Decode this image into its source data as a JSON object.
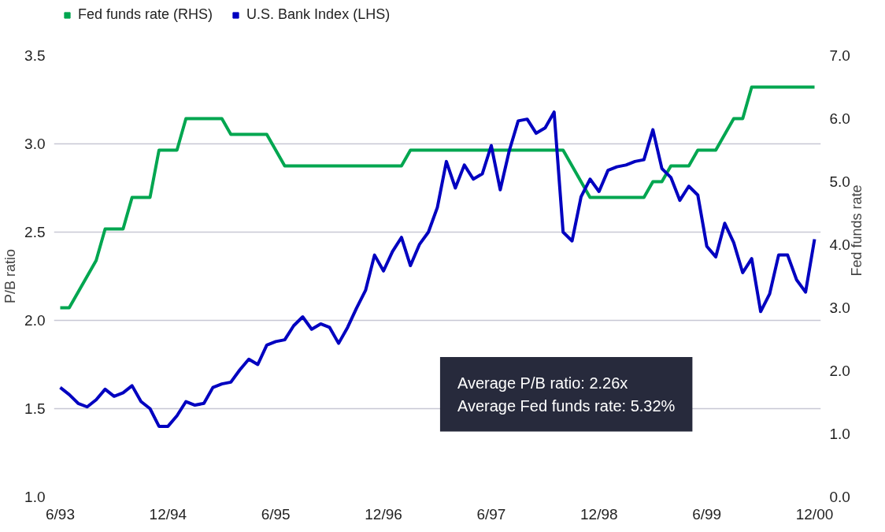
{
  "chart_data": {
    "type": "line",
    "ylabel": "P/B ratio",
    "y2label": "Fed funds rate",
    "categories": [
      "6/93",
      null,
      null,
      null,
      null,
      null,
      null,
      null,
      null,
      null,
      null,
      null,
      "12/94",
      null,
      null,
      null,
      null,
      null,
      null,
      null,
      null,
      null,
      null,
      null,
      "6/95",
      null,
      null,
      null,
      null,
      null,
      null,
      null,
      null,
      null,
      null,
      null,
      "12/96",
      null,
      null,
      null,
      null,
      null,
      null,
      null,
      null,
      null,
      null,
      null,
      "6/97",
      null,
      null,
      null,
      null,
      null,
      null,
      null,
      null,
      null,
      null,
      null,
      "12/98",
      null,
      null,
      null,
      null,
      null,
      null,
      null,
      null,
      null,
      null,
      null,
      "6/99",
      null,
      null,
      null,
      null,
      null,
      null,
      null,
      null,
      null,
      null,
      null,
      "12/00"
    ],
    "series": [
      {
        "name": "Fed funds rate (RHS)",
        "color": "#00a650",
        "axis": "y2",
        "values": [
          3.0,
          3.0,
          3.25,
          3.5,
          3.75,
          4.25,
          4.25,
          4.25,
          4.75,
          4.75,
          4.75,
          5.5,
          5.5,
          5.5,
          6.0,
          6.0,
          6.0,
          6.0,
          6.0,
          5.75,
          5.75,
          5.75,
          5.75,
          5.75,
          5.5,
          5.25,
          5.25,
          5.25,
          5.25,
          5.25,
          5.25,
          5.25,
          5.25,
          5.25,
          5.25,
          5.25,
          5.25,
          5.25,
          5.25,
          5.5,
          5.5,
          5.5,
          5.5,
          5.5,
          5.5,
          5.5,
          5.5,
          5.5,
          5.5,
          5.5,
          5.5,
          5.5,
          5.5,
          5.5,
          5.5,
          5.5,
          5.5,
          5.25,
          5.0,
          4.75,
          4.75,
          4.75,
          4.75,
          4.75,
          4.75,
          4.75,
          5.0,
          5.0,
          5.25,
          5.25,
          5.25,
          5.5,
          5.5,
          5.5,
          5.75,
          6.0,
          6.0,
          6.5,
          6.5,
          6.5,
          6.5,
          6.5,
          6.5,
          6.5,
          6.5
        ]
      },
      {
        "name": "U.S. Bank Index (LHS)",
        "color": "#0000c0",
        "values": [
          1.62,
          1.58,
          1.53,
          1.51,
          1.55,
          1.61,
          1.57,
          1.59,
          1.63,
          1.54,
          1.5,
          1.4,
          1.4,
          1.46,
          1.54,
          1.52,
          1.53,
          1.62,
          1.64,
          1.65,
          1.72,
          1.78,
          1.75,
          1.86,
          1.88,
          1.89,
          1.97,
          2.02,
          1.95,
          1.98,
          1.96,
          1.87,
          1.96,
          2.07,
          2.17,
          2.37,
          2.28,
          2.39,
          2.47,
          2.31,
          2.43,
          2.5,
          2.64,
          2.9,
          2.75,
          2.88,
          2.8,
          2.83,
          2.99,
          2.74,
          2.96,
          3.13,
          3.14,
          3.06,
          3.09,
          3.18,
          2.5,
          2.45,
          2.7,
          2.8,
          2.73,
          2.85,
          2.87,
          2.88,
          2.9,
          2.91,
          3.08,
          2.86,
          2.81,
          2.68,
          2.76,
          2.71,
          2.42,
          2.36,
          2.55,
          2.44,
          2.27,
          2.35,
          2.05,
          2.15,
          2.37,
          2.37,
          2.23,
          2.16,
          2.46
        ]
      }
    ],
    "ylim": [
      1.0,
      3.5
    ],
    "yticks": [
      {
        "value": 1.0,
        "label": "1.0"
      },
      {
        "value": 1.5,
        "label": "1.5"
      },
      {
        "value": 2.0,
        "label": "2.0"
      },
      {
        "value": 2.5,
        "label": "2.5"
      },
      {
        "value": 3.0,
        "label": "3.0"
      },
      {
        "value": 3.5,
        "label": "3.5"
      }
    ],
    "y2lim": [
      0,
      7
    ],
    "y2ticks": [
      {
        "value": 0,
        "label": "0.0"
      },
      {
        "value": 1,
        "label": "1.0"
      },
      {
        "value": 2,
        "label": "2.0"
      },
      {
        "value": 3,
        "label": "3.0"
      },
      {
        "value": 4,
        "label": "4.0"
      },
      {
        "value": 5,
        "label": "5.0"
      },
      {
        "value": 6,
        "label": "6.0"
      },
      {
        "value": 7,
        "label": "7.0"
      }
    ],
    "grid": "y",
    "legend": "top left",
    "line_style": "solid",
    "marker": "none",
    "annotations": [
      "Average P/B ratio: 2.26x",
      "Average Fed funds rate: 5.32%"
    ]
  }
}
